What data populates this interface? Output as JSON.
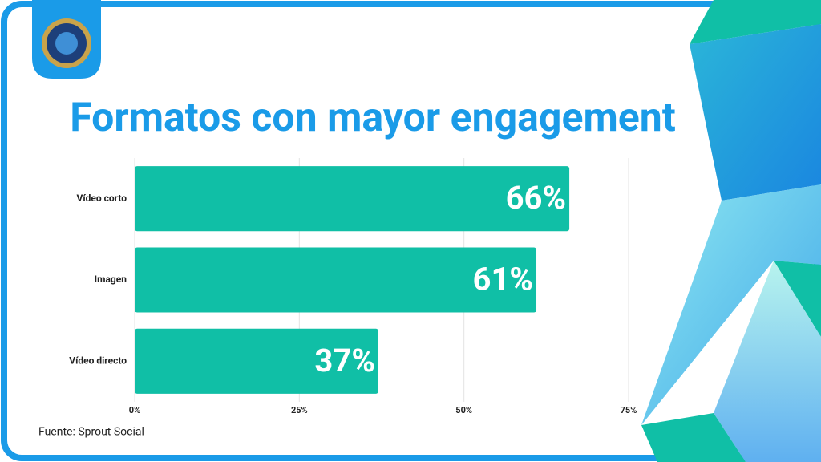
{
  "chart_data": {
    "type": "bar",
    "orientation": "horizontal",
    "title": "Formatos con mayor engagement",
    "categories": [
      "Vídeo corto",
      "Imagen",
      "Vídeo directo"
    ],
    "values": [
      66,
      61,
      37
    ],
    "value_labels": [
      "66%",
      "61%",
      "37%"
    ],
    "color": "#10bfa6",
    "xlim": [
      0,
      75
    ],
    "xticks": [
      {
        "value": 0,
        "label": "0%"
      },
      {
        "value": 25,
        "label": "25%"
      },
      {
        "value": 50,
        "label": "50%"
      },
      {
        "value": 75,
        "label": "75%"
      }
    ],
    "grid": true,
    "source": "Fuente: Sprout Social"
  }
}
